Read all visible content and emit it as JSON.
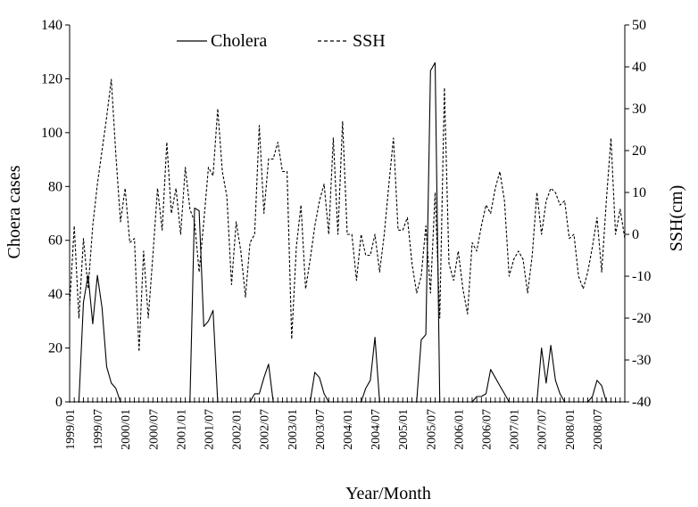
{
  "chart_data": {
    "type": "line",
    "xlabel": "Year/Month",
    "ylabel_left": "Choera cases",
    "ylabel_right": "SSH(cm)",
    "ylim_left": [
      0,
      140
    ],
    "ylim_right": [
      -40,
      50
    ],
    "yticks_left": [
      "0",
      "20",
      "40",
      "60",
      "80",
      "100",
      "120",
      "140"
    ],
    "yticks_right": [
      "-40",
      "-30",
      "-20",
      "-10",
      "0",
      "10",
      "20",
      "30",
      "40",
      "50"
    ],
    "x_tick_labels": [
      "1999/01",
      "1999/07",
      "2000/01",
      "2000/07",
      "2001/01",
      "2001/07",
      "2002/01",
      "2002/07",
      "2003/01",
      "2003/07",
      "2004/01",
      "2004/07",
      "2005/01",
      "2005/07",
      "2006/01",
      "2006/07",
      "2007/01",
      "2007/07",
      "2008/01",
      "2008/07"
    ],
    "months_start": "1999-01",
    "legend": "top",
    "grid": false,
    "series": [
      {
        "name": "Cholera",
        "axis": "left",
        "style": "solid",
        "values": [
          0,
          0,
          0,
          37,
          47,
          29,
          47,
          35,
          13,
          7,
          5,
          0,
          0,
          0,
          0,
          0,
          0,
          0,
          0,
          0,
          0,
          0,
          0,
          0,
          0,
          0,
          0,
          72,
          71,
          28,
          30,
          34,
          0,
          0,
          0,
          0,
          0,
          0,
          0,
          0,
          3,
          3,
          9,
          14,
          0,
          0,
          0,
          0,
          0,
          0,
          0,
          0,
          0,
          11,
          9,
          3,
          0,
          0,
          0,
          0,
          0,
          0,
          0,
          0,
          5,
          8,
          24,
          0,
          0,
          0,
          0,
          0,
          0,
          0,
          0,
          0,
          23,
          25,
          123,
          126,
          0,
          0,
          0,
          0,
          0,
          0,
          0,
          0,
          2,
          2,
          3,
          12,
          9,
          6,
          3,
          0,
          0,
          0,
          0,
          0,
          0,
          0,
          20,
          7,
          21,
          8,
          3,
          0,
          0,
          0,
          0,
          0,
          0,
          2,
          8,
          6,
          0,
          0
        ]
      },
      {
        "name": "SSH",
        "axis": "right",
        "style": "dashed",
        "values": [
          -17,
          2,
          -20,
          -1,
          -13,
          2,
          12,
          20,
          28,
          37,
          19,
          3,
          11,
          -2,
          -1,
          -28,
          -4,
          -20,
          -5,
          11,
          1,
          22,
          5,
          11,
          0,
          16,
          6,
          3,
          -9,
          3,
          16,
          14,
          30,
          15,
          9,
          -12,
          3,
          -4,
          -15,
          -2,
          0,
          26,
          5,
          18,
          18,
          22,
          15,
          15,
          -25,
          -3,
          7,
          -13,
          -6,
          2,
          8,
          12,
          0,
          23,
          0,
          27,
          0,
          0,
          -11,
          0,
          -5,
          -5,
          0,
          -9,
          0,
          12,
          23,
          1,
          1,
          4,
          -7,
          -14,
          -10,
          2,
          -14,
          10,
          -20,
          35,
          -7,
          -11,
          -4,
          -13,
          -19,
          -2,
          -4,
          2,
          7,
          5,
          11,
          15,
          8,
          -10,
          -6,
          -4,
          -6,
          -14,
          -5,
          10,
          0,
          8,
          11,
          10,
          7,
          8,
          -1,
          0,
          -10,
          -13,
          -9,
          -3,
          4,
          -9,
          8,
          23,
          0,
          6,
          -1
        ]
      }
    ]
  }
}
